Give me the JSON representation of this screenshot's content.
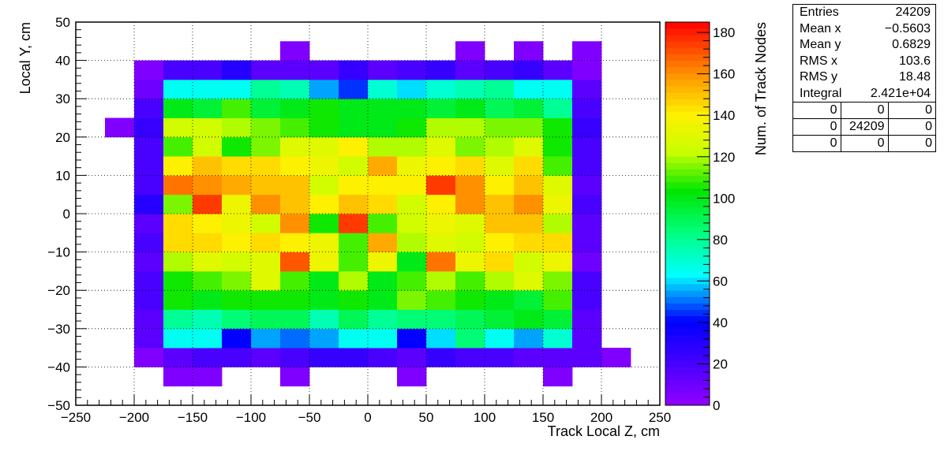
{
  "chart_data": {
    "type": "heatmap",
    "title": "",
    "xlabel": "Track Local Z, cm",
    "ylabel": "Local Y, cm",
    "zlabel": "Num. of Track Nodes",
    "xlim": [
      -250,
      250
    ],
    "ylim": [
      -50,
      50
    ],
    "zlim": [
      0,
      185
    ],
    "x_ticks": [
      "-250",
      "-200",
      "-150",
      "-100",
      "-50",
      "0",
      "50",
      "100",
      "150",
      "200",
      "250"
    ],
    "y_ticks": [
      "-50",
      "-40",
      "-30",
      "-20",
      "-10",
      "0",
      "10",
      "20",
      "30",
      "40",
      "50"
    ],
    "z_ticks": [
      "0",
      "20",
      "40",
      "60",
      "80",
      "100",
      "120",
      "140",
      "160",
      "180"
    ],
    "grid": true,
    "x_bin_edges": [
      -250,
      -225,
      -200,
      -175,
      -150,
      -125,
      -100,
      -75,
      -50,
      -25,
      0,
      25,
      50,
      75,
      100,
      125,
      150,
      175,
      200,
      225,
      250
    ],
    "y_bin_edges": [
      -50,
      -45,
      -40,
      -35,
      -30,
      -25,
      -20,
      -15,
      -10,
      -5,
      0,
      5,
      10,
      15,
      20,
      25,
      30,
      35,
      40,
      45,
      50
    ],
    "bins": [
      [
        0,
        0,
        0,
        0,
        0,
        0,
        0,
        0,
        0,
        0,
        0,
        0,
        0,
        0,
        0,
        0,
        0,
        0,
        0,
        0
      ],
      [
        0,
        0,
        0,
        5,
        5,
        0,
        0,
        5,
        0,
        0,
        0,
        5,
        0,
        0,
        0,
        0,
        5,
        0,
        0,
        0
      ],
      [
        0,
        0,
        5,
        15,
        20,
        20,
        15,
        20,
        25,
        25,
        20,
        15,
        25,
        20,
        20,
        15,
        15,
        15,
        5,
        0
      ],
      [
        0,
        0,
        15,
        65,
        65,
        40,
        55,
        50,
        55,
        65,
        65,
        40,
        60,
        85,
        65,
        55,
        70,
        15,
        0,
        0
      ],
      [
        0,
        0,
        15,
        80,
        75,
        85,
        90,
        90,
        75,
        90,
        80,
        85,
        85,
        90,
        95,
        100,
        95,
        15,
        0,
        0
      ],
      [
        0,
        0,
        20,
        105,
        100,
        105,
        105,
        105,
        100,
        105,
        100,
        115,
        110,
        105,
        100,
        95,
        110,
        20,
        0,
        0
      ],
      [
        0,
        0,
        20,
        105,
        110,
        115,
        130,
        110,
        100,
        120,
        100,
        110,
        120,
        110,
        120,
        130,
        115,
        20,
        0,
        0
      ],
      [
        0,
        0,
        15,
        120,
        130,
        125,
        130,
        170,
        135,
        110,
        135,
        100,
        165,
        135,
        145,
        125,
        135,
        10,
        0,
        0
      ],
      [
        0,
        0,
        20,
        145,
        145,
        140,
        145,
        140,
        135,
        110,
        155,
        120,
        130,
        125,
        140,
        145,
        145,
        15,
        0,
        0
      ],
      [
        0,
        0,
        15,
        145,
        140,
        135,
        125,
        160,
        105,
        175,
        110,
        125,
        135,
        130,
        150,
        150,
        120,
        15,
        0,
        0
      ],
      [
        0,
        0,
        30,
        115,
        175,
        135,
        160,
        150,
        140,
        150,
        145,
        125,
        140,
        160,
        150,
        160,
        135,
        20,
        0,
        0
      ],
      [
        0,
        0,
        20,
        165,
        160,
        155,
        150,
        150,
        125,
        140,
        140,
        140,
        175,
        160,
        140,
        150,
        130,
        15,
        0,
        0
      ],
      [
        0,
        0,
        20,
        140,
        150,
        145,
        145,
        140,
        135,
        125,
        155,
        135,
        140,
        145,
        130,
        145,
        110,
        20,
        0,
        0
      ],
      [
        0,
        0,
        20,
        110,
        125,
        105,
        115,
        130,
        130,
        140,
        120,
        120,
        130,
        115,
        120,
        130,
        105,
        20,
        0,
        0
      ],
      [
        0,
        5,
        25,
        125,
        125,
        120,
        115,
        110,
        105,
        100,
        100,
        105,
        120,
        120,
        115,
        115,
        105,
        25,
        0,
        0
      ],
      [
        0,
        0,
        20,
        100,
        95,
        110,
        95,
        100,
        105,
        100,
        100,
        100,
        95,
        100,
        90,
        95,
        80,
        20,
        0,
        0
      ],
      [
        0,
        0,
        10,
        65,
        65,
        65,
        80,
        75,
        55,
        45,
        70,
        60,
        70,
        75,
        80,
        65,
        65,
        15,
        0,
        0
      ],
      [
        0,
        0,
        5,
        20,
        20,
        30,
        15,
        15,
        15,
        25,
        15,
        20,
        25,
        15,
        20,
        25,
        15,
        5,
        0,
        0
      ],
      [
        0,
        0,
        0,
        0,
        0,
        0,
        0,
        5,
        0,
        0,
        0,
        0,
        0,
        5,
        0,
        5,
        0,
        5,
        0,
        0
      ],
      [
        0,
        0,
        0,
        0,
        0,
        0,
        0,
        0,
        0,
        0,
        0,
        0,
        0,
        0,
        0,
        0,
        0,
        0,
        0,
        0
      ]
    ]
  },
  "stats": {
    "rows": [
      {
        "label": "Entries",
        "value": "24209"
      },
      {
        "label": "Mean x",
        "value": "−0.5603"
      },
      {
        "label": "Mean y",
        "value": "0.6829"
      },
      {
        "label": "RMS x",
        "value": "103.6"
      },
      {
        "label": "RMS y",
        "value": "18.48"
      },
      {
        "label": "Integral",
        "value": "2.421e+04"
      }
    ],
    "table": [
      [
        "0",
        "0",
        "0"
      ],
      [
        "0",
        "24209",
        "0"
      ],
      [
        "0",
        "0",
        "0"
      ]
    ]
  }
}
